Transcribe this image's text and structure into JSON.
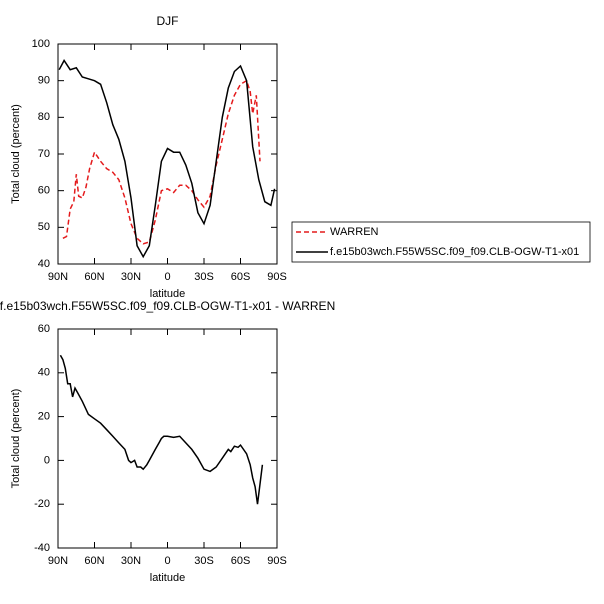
{
  "chart_data": [
    {
      "type": "line",
      "title": "DJF",
      "xlabel": "latitude",
      "ylabel": "Total cloud (percent)",
      "xlim": [
        90,
        -90
      ],
      "xticks": [
        {
          "value": 90,
          "label": "90N"
        },
        {
          "value": 60,
          "label": "60N"
        },
        {
          "value": 30,
          "label": "30N"
        },
        0,
        {
          "value": -30,
          "label": "30S"
        },
        {
          "value": -60,
          "label": "60S"
        },
        {
          "value": -90,
          "label": "90S"
        }
      ],
      "ylim": [
        40,
        100
      ],
      "yticks": [
        40,
        50,
        60,
        70,
        80,
        90,
        100
      ],
      "legend": "right",
      "series": [
        {
          "name": "WARREN",
          "color": "#e41a1c",
          "linestyle": "dashed",
          "x": [
            86,
            83,
            80,
            77,
            75,
            73,
            70,
            67,
            64,
            60,
            55,
            50,
            45,
            40,
            35,
            30,
            25,
            20,
            15,
            10,
            5,
            0,
            -5,
            -10,
            -15,
            -20,
            -25,
            -30,
            -35,
            -40,
            -45,
            -50,
            -55,
            -60,
            -65,
            -68,
            -70,
            -73,
            -76
          ],
          "values": [
            47,
            47.5,
            55,
            57,
            64.5,
            58.5,
            58,
            61,
            66,
            70.5,
            68,
            66,
            65,
            63,
            58,
            51,
            47,
            45.5,
            46,
            52,
            60,
            60.5,
            59.5,
            61.5,
            61.5,
            60,
            57.5,
            55.5,
            58.5,
            67,
            74,
            81,
            86,
            89,
            90,
            87,
            81,
            86,
            68
          ]
        },
        {
          "name": "f.e15b03wch.F55W5SC.f09_f09.CLB-OGW-T1-x01",
          "color": "#000000",
          "linestyle": "solid",
          "x": [
            89,
            85,
            80,
            75,
            70,
            65,
            60,
            55,
            50,
            45,
            40,
            35,
            30,
            25,
            20,
            15,
            10,
            5,
            0,
            -5,
            -10,
            -15,
            -20,
            -25,
            -30,
            -35,
            -40,
            -45,
            -50,
            -55,
            -60,
            -65,
            -70,
            -75,
            -80,
            -85,
            -88
          ],
          "values": [
            93,
            95.5,
            93,
            93.5,
            91,
            90.5,
            90,
            89,
            84,
            78,
            74,
            68,
            58,
            45,
            42,
            45,
            56,
            68,
            71.5,
            70.5,
            70.5,
            67,
            62,
            54,
            51,
            56,
            68,
            80,
            88,
            92.5,
            94,
            90,
            72,
            63,
            57,
            56,
            60.5
          ]
        }
      ]
    },
    {
      "type": "line",
      "title": "f.e15b03wch.F55W5SC.f09_f09.CLB-OGW-T1-x01 - WARREN",
      "xlabel": "latitude",
      "ylabel": "Total cloud (percent)",
      "xlim": [
        90,
        -90
      ],
      "xticks": [
        {
          "value": 90,
          "label": "90N"
        },
        {
          "value": 60,
          "label": "60N"
        },
        {
          "value": 30,
          "label": "30N"
        },
        0,
        {
          "value": -30,
          "label": "30S"
        },
        {
          "value": -60,
          "label": "60S"
        },
        {
          "value": -90,
          "label": "90S"
        }
      ],
      "ylim": [
        -40,
        60
      ],
      "yticks": [
        -40,
        -20,
        0,
        20,
        40,
        60
      ],
      "series": [
        {
          "color": "#000000",
          "linestyle": "solid",
          "x": [
            88,
            86,
            84,
            82,
            80,
            78,
            76,
            74,
            70,
            65,
            60,
            55,
            50,
            45,
            40,
            35,
            32,
            30,
            27,
            25,
            22,
            20,
            17,
            15,
            10,
            7,
            5,
            3,
            0,
            -5,
            -10,
            -15,
            -20,
            -25,
            -30,
            -35,
            -40,
            -45,
            -50,
            -52,
            -55,
            -58,
            -60,
            -65,
            -68,
            -70,
            -72,
            -74,
            -78
          ],
          "values": [
            48,
            46,
            42,
            35,
            35,
            29,
            33,
            31,
            27,
            21,
            19,
            17,
            14,
            11,
            8,
            5,
            0,
            -1,
            0,
            -3,
            -3,
            -4,
            -2,
            0,
            5,
            8,
            10,
            11,
            11,
            10.5,
            11,
            8,
            5,
            1,
            -4,
            -5,
            -3,
            1,
            5,
            4,
            6.5,
            6,
            7,
            3,
            -2,
            -8,
            -12,
            -20,
            -2
          ]
        }
      ]
    }
  ]
}
